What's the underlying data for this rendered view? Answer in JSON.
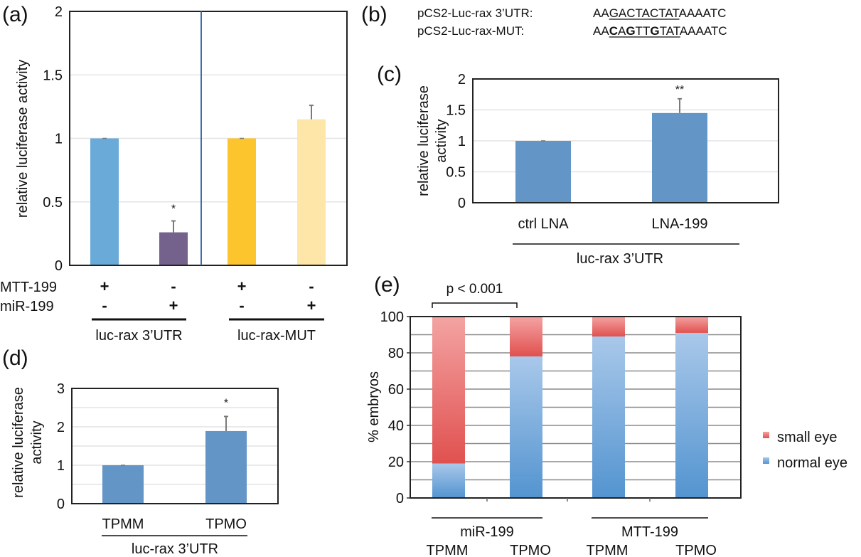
{
  "panels": {
    "a": {
      "label": "(a)"
    },
    "b": {
      "label": "(b)"
    },
    "c": {
      "label": "(c)"
    },
    "d": {
      "label": "(d)"
    },
    "e": {
      "label": "(e)"
    }
  },
  "sequences": {
    "rows": [
      {
        "name": "pCS2-Luc-rax 3’UTR:",
        "prefix": "AA",
        "site": [
          {
            "text": "G",
            "bold": false
          },
          {
            "text": "A",
            "bold": false
          },
          {
            "text": "C",
            "bold": false
          },
          {
            "text": "T",
            "bold": false
          },
          {
            "text": "A",
            "bold": false
          },
          {
            "text": "C",
            "bold": false
          },
          {
            "text": "T",
            "bold": false
          },
          {
            "text": "A",
            "bold": false
          },
          {
            "text": "T",
            "bold": false
          }
        ],
        "suffix": "AAAATC"
      },
      {
        "name": "pCS2-Luc-rax-MUT:",
        "prefix": "AA",
        "site": [
          {
            "text": "C",
            "bold": true
          },
          {
            "text": "A",
            "bold": false
          },
          {
            "text": "G",
            "bold": true
          },
          {
            "text": "T",
            "bold": false
          },
          {
            "text": "T",
            "bold": false
          },
          {
            "text": "G",
            "bold": true
          },
          {
            "text": "T",
            "bold": false
          },
          {
            "text": "A",
            "bold": false
          },
          {
            "text": "T",
            "bold": false
          }
        ],
        "suffix": "AAAATC"
      }
    ]
  },
  "chart_data": [
    {
      "id": "a",
      "type": "bar",
      "title": "",
      "ylabel": "relative luciferase activity",
      "xlabel": "",
      "ylim": [
        0,
        2
      ],
      "yticks": [
        "0",
        "0.5",
        "1",
        "1.5",
        "2"
      ],
      "grid": true,
      "categories": [
        "MTT-199 + / miR-199 -",
        "MTT-199 - / miR-199 +",
        "MTT-199 + / miR-199 -",
        "MTT-199 - / miR-199 +"
      ],
      "values": [
        1.0,
        0.26,
        1.0,
        1.15
      ],
      "errors": [
        0.0,
        0.09,
        0.0,
        0.11
      ],
      "colors": [
        "#6aaad8",
        "#74618c",
        "#fcc52e",
        "#fde6a8"
      ],
      "annotations": [
        "",
        "*",
        "",
        ""
      ],
      "row_labels": [
        "MTT-199",
        "miR-199"
      ],
      "row_values": [
        [
          "+",
          "-",
          "+",
          "-"
        ],
        [
          "-",
          "+",
          "-",
          "+"
        ]
      ],
      "groups": [
        {
          "label": "luc-rax 3’UTR",
          "span": [
            0,
            1
          ]
        },
        {
          "label": "luc-rax-MUT",
          "span": [
            2,
            3
          ]
        }
      ],
      "divider_color": "#3c6db0"
    },
    {
      "id": "c",
      "type": "bar",
      "title": "",
      "ylabel": "relative luciferase activity",
      "ylabel_lines": [
        "relative luciferase",
        "activity"
      ],
      "ylim": [
        0,
        2
      ],
      "yticks": [
        "0",
        "0.5",
        "1",
        "1.5",
        "2"
      ],
      "grid": true,
      "categories": [
        "ctrl LNA",
        "LNA-199"
      ],
      "values": [
        1.0,
        1.45
      ],
      "errors": [
        0.0,
        0.23
      ],
      "colors": [
        "#6395c7",
        "#6395c7"
      ],
      "annotations": [
        "",
        "**"
      ],
      "group_label": "luc-rax 3’UTR"
    },
    {
      "id": "d",
      "type": "bar",
      "title": "",
      "ylabel": "relative luciferase activity",
      "ylabel_lines": [
        "relative luciferase",
        "activity"
      ],
      "ylim": [
        0,
        3
      ],
      "yticks": [
        "0",
        "1",
        "2",
        "3"
      ],
      "grid": true,
      "categories": [
        "TPMM",
        "TPMO"
      ],
      "values": [
        1.0,
        1.89
      ],
      "errors": [
        0.0,
        0.38
      ],
      "colors": [
        "#6395c7",
        "#6395c7"
      ],
      "annotations": [
        "",
        "*"
      ],
      "group_label": "luc-rax 3’UTR"
    },
    {
      "id": "e",
      "type": "bar",
      "stacked": true,
      "title": "",
      "ylabel": "% embryos",
      "ylim": [
        0,
        100
      ],
      "yticks": [
        "0",
        "20",
        "40",
        "60",
        "80",
        "100"
      ],
      "grid": true,
      "categories": [
        "TPMM",
        "TPMO",
        "TPMM",
        "TPMO"
      ],
      "groups": [
        {
          "label": "miR-199",
          "span": [
            0,
            1
          ]
        },
        {
          "label": "MTT-199",
          "span": [
            2,
            3
          ]
        }
      ],
      "series": [
        {
          "name": "normal eye",
          "values": [
            19,
            78,
            89,
            91
          ],
          "color_top": "#a9c8ea",
          "color_bottom": "#5394d0"
        },
        {
          "name": "small eye",
          "values": [
            81,
            22,
            11,
            9
          ],
          "color_top": "#f4a3a3",
          "color_bottom": "#e0514f"
        }
      ],
      "legend": {
        "placement": "right",
        "entries": [
          "small eye",
          "normal eye"
        ]
      },
      "significance": {
        "text": "p < 0.001",
        "between": [
          0,
          1
        ]
      }
    }
  ]
}
